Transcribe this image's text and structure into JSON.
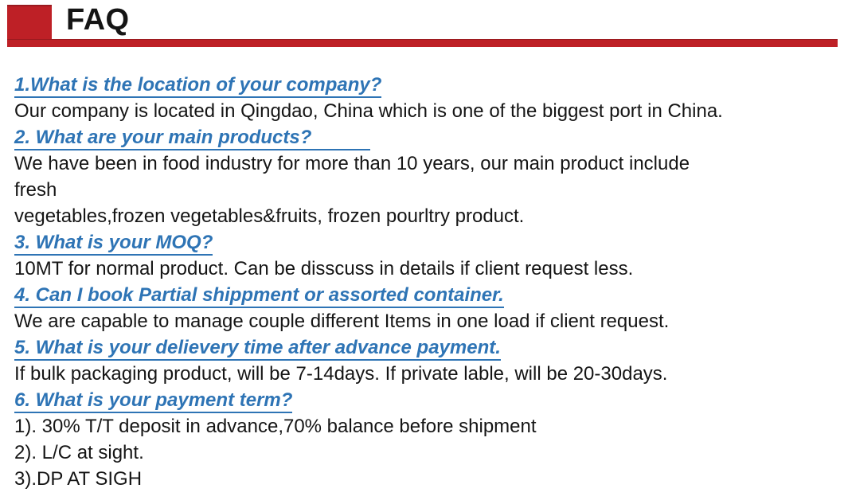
{
  "header": {
    "title": "FAQ"
  },
  "colors": {
    "accent_red": "#be2026",
    "question_blue": "#2e74b5",
    "text_black": "#151515"
  },
  "content": {
    "lines": [
      {
        "type": "question",
        "text": "1.What is the location of your company?"
      },
      {
        "type": "answer",
        "text": "Our company is located in Qingdao, China which is one of the biggest port in China."
      },
      {
        "type": "question",
        "text": "2. What are your main products?"
      },
      {
        "type": "answer",
        "text": "We have been in food industry for more than 10 years, our main product include"
      },
      {
        "type": "answer",
        "text": "fresh"
      },
      {
        "type": "answer",
        "text": "vegetables,frozen vegetables&fruits, frozen pourltry product."
      },
      {
        "type": "question",
        "text": "3. What is your MOQ?"
      },
      {
        "type": "answer",
        "text": "10MT for normal product. Can be disscuss in details if client request less."
      },
      {
        "type": "question",
        "text": "4. Can I book Partial shippment or assorted container."
      },
      {
        "type": "answer",
        "text": "We are capable to manage couple different Items in one load if client request."
      },
      {
        "type": "question",
        "text": "5. What is your delievery time after advance payment."
      },
      {
        "type": "answer",
        "text": "If bulk packaging product, will be 7-14days. If private lable, will be 20-30days."
      },
      {
        "type": "question",
        "text": "6. What is your payment term?"
      },
      {
        "type": "answer",
        "text": "1). 30% T/T deposit in advance,70% balance before shipment"
      },
      {
        "type": "answer",
        "text": "2). L/C at sight."
      },
      {
        "type": "answer",
        "text": "3).DP AT SIGH"
      }
    ]
  }
}
